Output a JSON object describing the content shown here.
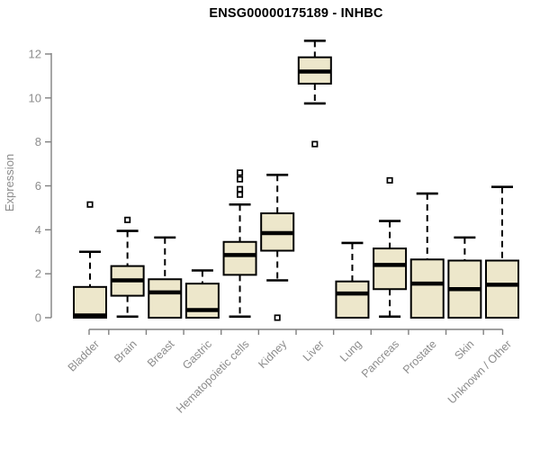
{
  "window": {
    "background": "#ffffff"
  },
  "chart_data": {
    "type": "boxplot",
    "title": "ENSG00000175189 - INHBC",
    "xlabel": "",
    "ylabel": "Expression",
    "ylim": [
      0,
      12.75
    ],
    "yticks": [
      0,
      2,
      4,
      6,
      8,
      10,
      12
    ],
    "grid": false,
    "legend": "none",
    "categories": [
      "Bladder",
      "Brain",
      "Breast",
      "Gastric",
      "Hematopoietic cells",
      "Kidney",
      "Liver",
      "Lung",
      "Pancreas",
      "Prostate",
      "Skin",
      "Unknown / Other"
    ],
    "boxes": [
      {
        "label": "Bladder",
        "whisker_low": 0,
        "q1": 0,
        "median": 0.1,
        "q3": 1.4,
        "whisker_high": 3.0,
        "outliers": [
          5.15
        ]
      },
      {
        "label": "Brain",
        "whisker_low": 0.05,
        "q1": 1.0,
        "median": 1.7,
        "q3": 2.35,
        "whisker_high": 3.95,
        "outliers": [
          4.45
        ]
      },
      {
        "label": "Breast",
        "whisker_low": 0,
        "q1": 0,
        "median": 1.15,
        "q3": 1.75,
        "whisker_high": 3.65,
        "outliers": []
      },
      {
        "label": "Gastric",
        "whisker_low": 0,
        "q1": 0,
        "median": 0.35,
        "q3": 1.55,
        "whisker_high": 2.15,
        "outliers": []
      },
      {
        "label": "Hematopoietic cells",
        "whisker_low": 0.05,
        "q1": 1.95,
        "median": 2.85,
        "q3": 3.45,
        "whisker_high": 5.15,
        "outliers": [
          5.6,
          5.85,
          6.3,
          6.6
        ]
      },
      {
        "label": "Kidney",
        "whisker_low": 1.7,
        "q1": 3.05,
        "median": 3.85,
        "q3": 4.75,
        "whisker_high": 6.5,
        "outliers": [
          0.0
        ]
      },
      {
        "label": "Liver",
        "whisker_low": 9.75,
        "q1": 10.65,
        "median": 11.2,
        "q3": 11.85,
        "whisker_high": 12.6,
        "outliers": [
          7.9
        ]
      },
      {
        "label": "Lung",
        "whisker_low": 0,
        "q1": 0,
        "median": 1.1,
        "q3": 1.65,
        "whisker_high": 3.4,
        "outliers": []
      },
      {
        "label": "Pancreas",
        "whisker_low": 0.05,
        "q1": 1.3,
        "median": 2.4,
        "q3": 3.15,
        "whisker_high": 4.4,
        "outliers": [
          6.25
        ]
      },
      {
        "label": "Prostate",
        "whisker_low": 0,
        "q1": 0,
        "median": 1.55,
        "q3": 2.65,
        "whisker_high": 5.65,
        "outliers": []
      },
      {
        "label": "Skin",
        "whisker_low": 0,
        "q1": 0,
        "median": 1.3,
        "q3": 2.6,
        "whisker_high": 3.65,
        "outliers": []
      },
      {
        "label": "Unknown / Other",
        "whisker_low": 0,
        "q1": 0,
        "median": 1.5,
        "q3": 2.6,
        "whisker_high": 5.95,
        "outliers": []
      }
    ]
  },
  "style": {
    "box_fill": "#ede7cb",
    "box_stroke": "#000000",
    "median_color": "#000000",
    "whisker_color": "#000000",
    "outlier_fill": "#ffffff",
    "outlier_stroke": "#000000",
    "axis_color": "#808080",
    "tick_label_color": "#8c8c8c",
    "title_color": "#000000",
    "background": "#ffffff"
  }
}
